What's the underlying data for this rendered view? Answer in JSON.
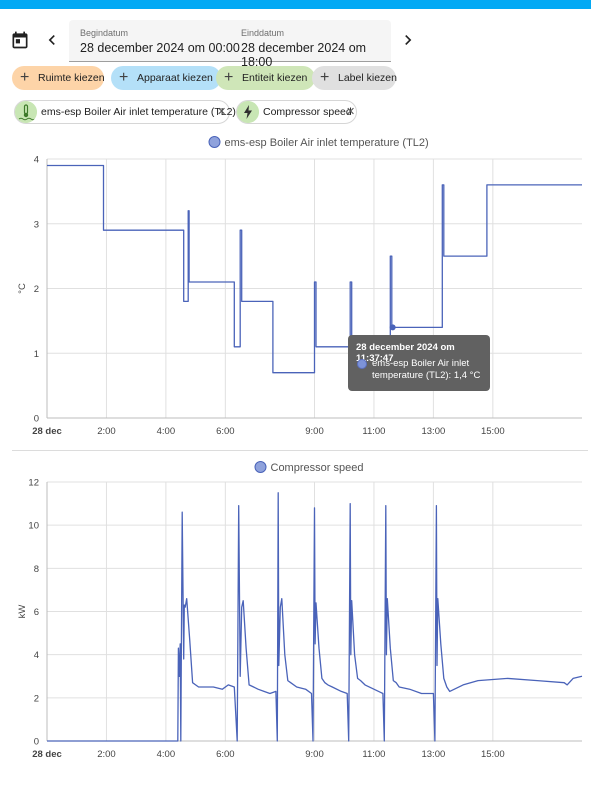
{
  "date_picker": {
    "start_label": "Begindatum",
    "start_value": "28 december 2024 om 00:00",
    "end_label": "Einddatum",
    "end_value": "28 december 2024 om 18:00"
  },
  "target_pickers": [
    {
      "label": "Ruimte kiezen"
    },
    {
      "label": "Apparaat kiezen"
    },
    {
      "label": "Entiteit kiezen"
    },
    {
      "label": "Label kiezen"
    }
  ],
  "selected_entities": [
    {
      "label": "ems-esp Boiler Air inlet temperature (TL2)",
      "icon": "water-thermometer-icon"
    },
    {
      "label": "Compressor speed",
      "icon": "lightning-icon"
    }
  ],
  "colors": {
    "series": "#4a63b9",
    "grid": "#e0e0e0",
    "accent": "#03a9f4"
  },
  "tooltip": {
    "title": "28 december 2024 om 11:37:47",
    "body": "ems-esp Boiler Air inlet temperature (TL2): 1,4 °C"
  },
  "chart_data": [
    {
      "type": "line",
      "title": "ems-esp Boiler Air inlet temperature (TL2)",
      "ylabel": "°C",
      "ylim": [
        0,
        4
      ],
      "yticks": [
        "0",
        "1",
        "2",
        "3",
        "4"
      ],
      "xlim": [
        0,
        18
      ],
      "xticks": [
        {
          "t": 0,
          "label": "28 dec"
        },
        {
          "t": 2,
          "label": "2:00"
        },
        {
          "t": 4,
          "label": "4:00"
        },
        {
          "t": 6,
          "label": "6:00"
        },
        {
          "t": 9,
          "label": "9:00"
        },
        {
          "t": 11,
          "label": "11:00"
        },
        {
          "t": 13,
          "label": "13:00"
        },
        {
          "t": 15,
          "label": "15:00"
        }
      ],
      "x": [
        0,
        1.9,
        1.9,
        4.6,
        4.6,
        4.75,
        4.75,
        4.78,
        4.78,
        5.2,
        5.2,
        5.8,
        6.3,
        6.3,
        6.5,
        6.5,
        6.55,
        6.55,
        6.6,
        6.6,
        7.6,
        7.6,
        7.9,
        7.9,
        9.0,
        9.0,
        9.05,
        9.05,
        9.1,
        9.1,
        10.2,
        10.2,
        10.25,
        10.25,
        10.3,
        10.3,
        10.6,
        11.55,
        11.55,
        11.6,
        11.6,
        11.63,
        11.63,
        13.3,
        13.3,
        13.35,
        13.35,
        13.4,
        13.4,
        14.8,
        14.8,
        18
      ],
      "y": [
        3.9,
        3.9,
        2.9,
        2.9,
        1.8,
        1.8,
        3.2,
        3.2,
        2.1,
        2.1,
        2.1,
        2.1,
        2.1,
        1.1,
        1.1,
        2.9,
        2.9,
        1.8,
        1.8,
        1.8,
        1.8,
        0.7,
        0.7,
        0.7,
        0.7,
        2.1,
        2.1,
        1.1,
        1.1,
        1.1,
        1.1,
        2.1,
        2.1,
        1.0,
        1.0,
        1.0,
        1.0,
        1.0,
        2.5,
        2.5,
        1.4,
        1.4,
        1.4,
        1.4,
        3.6,
        3.6,
        2.5,
        2.5,
        2.5,
        2.5,
        3.6,
        3.6
      ],
      "highlight": {
        "x": 11.63,
        "y": 1.4
      }
    },
    {
      "type": "line",
      "title": "Compressor speed",
      "ylabel": "kW",
      "ylim": [
        0,
        12
      ],
      "yticks": [
        "0",
        "2",
        "4",
        "6",
        "8",
        "10",
        "12"
      ],
      "xlim": [
        0,
        18
      ],
      "xticks": [
        {
          "t": 0,
          "label": "28 dec"
        },
        {
          "t": 2,
          "label": "2:00"
        },
        {
          "t": 4,
          "label": "4:00"
        },
        {
          "t": 6,
          "label": "6:00"
        },
        {
          "t": 9,
          "label": "9:00"
        },
        {
          "t": 11,
          "label": "11:00"
        },
        {
          "t": 13,
          "label": "13:00"
        },
        {
          "t": 15,
          "label": "15:00"
        }
      ],
      "x": [
        0,
        4.4,
        4.42,
        4.45,
        4.48,
        4.5,
        4.55,
        4.6,
        4.62,
        4.65,
        4.7,
        4.8,
        4.9,
        5.0,
        5.1,
        5.3,
        5.6,
        5.9,
        6.1,
        6.3,
        6.4,
        6.45,
        6.5,
        6.55,
        6.6,
        6.7,
        6.8,
        6.95,
        7.1,
        7.3,
        7.5,
        7.7,
        7.75,
        7.78,
        7.8,
        7.85,
        7.9,
        8.0,
        8.1,
        8.2,
        8.4,
        8.7,
        8.9,
        8.95,
        9.0,
        9.02,
        9.05,
        9.15,
        9.25,
        9.35,
        9.45,
        9.6,
        9.9,
        10.1,
        10.15,
        10.2,
        10.22,
        10.25,
        10.35,
        10.45,
        10.55,
        10.7,
        11.0,
        11.3,
        11.35,
        11.4,
        11.42,
        11.45,
        11.55,
        11.65,
        11.75,
        11.85,
        12.2,
        12.6,
        13.0,
        13.05,
        13.1,
        13.12,
        13.15,
        13.25,
        13.35,
        13.45,
        13.55,
        14.0,
        14.5,
        15.5,
        16.5,
        17.4,
        17.5,
        17.7,
        18
      ],
      "y": [
        0,
        0,
        4.3,
        3.0,
        4.5,
        0,
        10.6,
        3.8,
        6.3,
        6.2,
        6.6,
        4.7,
        2.7,
        2.6,
        2.5,
        2.5,
        2.5,
        2.4,
        2.6,
        2.5,
        0,
        10.9,
        3.0,
        6.2,
        6.5,
        4.3,
        2.6,
        2.5,
        2.4,
        2.3,
        2.2,
        2.3,
        0,
        11.5,
        3.5,
        6.2,
        6.6,
        4.0,
        2.8,
        2.7,
        2.5,
        2.4,
        2.2,
        0,
        10.8,
        4.5,
        6.4,
        4.3,
        2.9,
        2.7,
        2.6,
        2.5,
        2.3,
        2.2,
        0,
        11.0,
        4.0,
        6.5,
        4.0,
        2.9,
        2.8,
        2.6,
        2.4,
        2.2,
        0,
        10.9,
        4.0,
        6.6,
        4.3,
        2.8,
        2.7,
        2.5,
        2.4,
        2.2,
        2.2,
        0,
        10.9,
        3.5,
        6.6,
        4.5,
        2.9,
        2.5,
        2.3,
        2.6,
        2.8,
        2.9,
        2.8,
        2.7,
        2.6,
        2.9,
        3.0
      ]
    }
  ]
}
